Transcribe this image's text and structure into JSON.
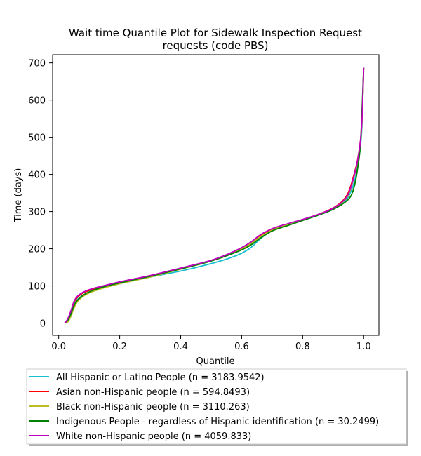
{
  "chart_data": {
    "type": "line",
    "title_lines": [
      "Wait time Quantile Plot for Sidewalk Inspection Request",
      "requests (code PBS)"
    ],
    "xlabel": "Quantile",
    "ylabel": "Time (days)",
    "xlim": [
      -0.02,
      1.05
    ],
    "ylim": [
      -33,
      722
    ],
    "xticks": [
      0.0,
      0.2,
      0.4,
      0.6,
      0.8,
      1.0
    ],
    "xtick_labels": [
      "0.0",
      "0.2",
      "0.4",
      "0.6",
      "0.8",
      "1.0"
    ],
    "yticks": [
      0,
      100,
      200,
      300,
      400,
      500,
      600,
      700
    ],
    "ytick_labels": [
      "0",
      "100",
      "200",
      "300",
      "400",
      "500",
      "600",
      "700"
    ],
    "grid": false,
    "legend_position": "below",
    "series": [
      {
        "name": "All Hispanic or Latino People (n = 3183.9542)",
        "color": "#17becf",
        "x": [
          0.02,
          0.03,
          0.04,
          0.05,
          0.06,
          0.08,
          0.1,
          0.15,
          0.2,
          0.3,
          0.4,
          0.5,
          0.55,
          0.6,
          0.63,
          0.66,
          0.7,
          0.75,
          0.8,
          0.85,
          0.9,
          0.93,
          0.95,
          0.97,
          0.98,
          0.99,
          0.995,
          1.0
        ],
        "y": [
          0,
          8,
          25,
          48,
          62,
          75,
          83,
          96,
          106,
          124,
          140,
          160,
          172,
          188,
          203,
          226,
          250,
          266,
          277,
          290,
          306,
          322,
          340,
          382,
          420,
          480,
          540,
          687
        ]
      },
      {
        "name": "Asian non-Hispanic people (n = 594.8493)",
        "color": "#ff0000",
        "x": [
          0.02,
          0.03,
          0.04,
          0.05,
          0.06,
          0.08,
          0.1,
          0.15,
          0.2,
          0.3,
          0.4,
          0.5,
          0.55,
          0.6,
          0.63,
          0.66,
          0.7,
          0.75,
          0.8,
          0.85,
          0.9,
          0.93,
          0.95,
          0.97,
          0.98,
          0.99,
          0.995,
          1.0
        ],
        "y": [
          0,
          10,
          30,
          55,
          68,
          81,
          88,
          100,
          110,
          127,
          147,
          168,
          183,
          202,
          217,
          235,
          252,
          265,
          278,
          292,
          310,
          328,
          352,
          405,
          440,
          495,
          555,
          687
        ]
      },
      {
        "name": "Black non-Hispanic people (n = 3110.263)",
        "color": "#bcbd22",
        "x": [
          0.02,
          0.03,
          0.04,
          0.05,
          0.06,
          0.08,
          0.1,
          0.15,
          0.2,
          0.3,
          0.4,
          0.5,
          0.55,
          0.6,
          0.63,
          0.66,
          0.7,
          0.75,
          0.8,
          0.85,
          0.9,
          0.93,
          0.95,
          0.97,
          0.98,
          0.99,
          0.995,
          1.0
        ],
        "y": [
          0,
          3,
          18,
          40,
          56,
          72,
          81,
          95,
          106,
          124,
          145,
          167,
          181,
          199,
          214,
          232,
          250,
          265,
          278,
          291,
          308,
          325,
          345,
          398,
          435,
          490,
          550,
          687
        ]
      },
      {
        "name": "Indigenous People - regardless of Hispanic identification (n = 30.2499)",
        "color": "#008000",
        "x": [
          0.02,
          0.03,
          0.04,
          0.05,
          0.06,
          0.08,
          0.1,
          0.15,
          0.2,
          0.3,
          0.4,
          0.5,
          0.55,
          0.6,
          0.63,
          0.66,
          0.7,
          0.75,
          0.8,
          0.85,
          0.9,
          0.93,
          0.95,
          0.96,
          0.97,
          0.98,
          0.99,
          1.0
        ],
        "y": [
          0,
          8,
          24,
          46,
          60,
          75,
          84,
          98,
          108,
          126,
          146,
          167,
          181,
          197,
          210,
          228,
          248,
          262,
          276,
          290,
          306,
          320,
          333,
          345,
          370,
          415,
          490,
          687
        ]
      },
      {
        "name": "White non-Hispanic people (n = 4059.833)",
        "color": "#bf00bf",
        "x": [
          0.02,
          0.03,
          0.04,
          0.05,
          0.06,
          0.08,
          0.1,
          0.15,
          0.2,
          0.3,
          0.4,
          0.5,
          0.55,
          0.6,
          0.63,
          0.66,
          0.7,
          0.75,
          0.8,
          0.85,
          0.9,
          0.93,
          0.95,
          0.97,
          0.98,
          0.99,
          0.995,
          1.0
        ],
        "y": [
          0,
          12,
          33,
          58,
          71,
          83,
          90,
          101,
          111,
          128,
          148,
          169,
          184,
          203,
          218,
          237,
          254,
          267,
          279,
          292,
          309,
          326,
          348,
          400,
          438,
          495,
          555,
          687
        ]
      }
    ]
  }
}
